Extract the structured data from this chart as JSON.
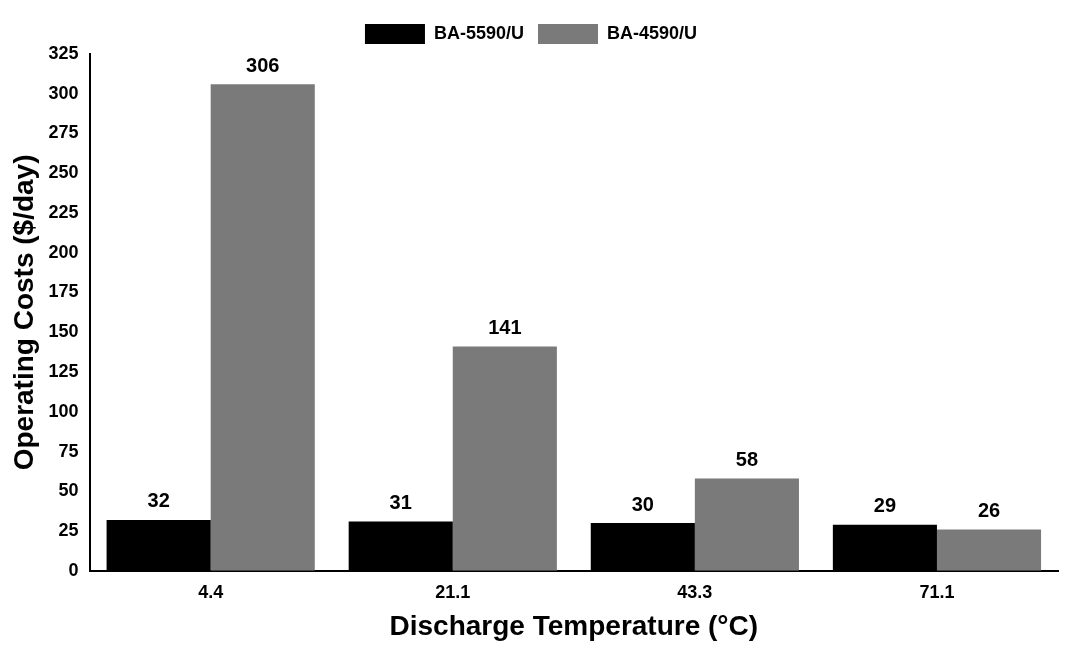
{
  "chart_data": {
    "type": "bar",
    "xlabel": "Discharge Temperature (°C)",
    "ylabel": "Operating Costs ($/day)",
    "categories": [
      "4.4",
      "21.1",
      "43.3",
      "71.1"
    ],
    "series": [
      {
        "name": "BA-5590/U",
        "color": "#000000",
        "values": [
          32,
          31,
          30,
          29
        ]
      },
      {
        "name": "BA-4590/U",
        "color": "#7a7a7a",
        "values": [
          306,
          141,
          58,
          26
        ]
      }
    ],
    "ylim": [
      0,
      325
    ],
    "yticks": [
      0,
      25,
      50,
      75,
      100,
      125,
      150,
      175,
      200,
      225,
      250,
      275,
      300,
      325
    ],
    "grid": false,
    "legend": "top",
    "data_labels": true
  }
}
